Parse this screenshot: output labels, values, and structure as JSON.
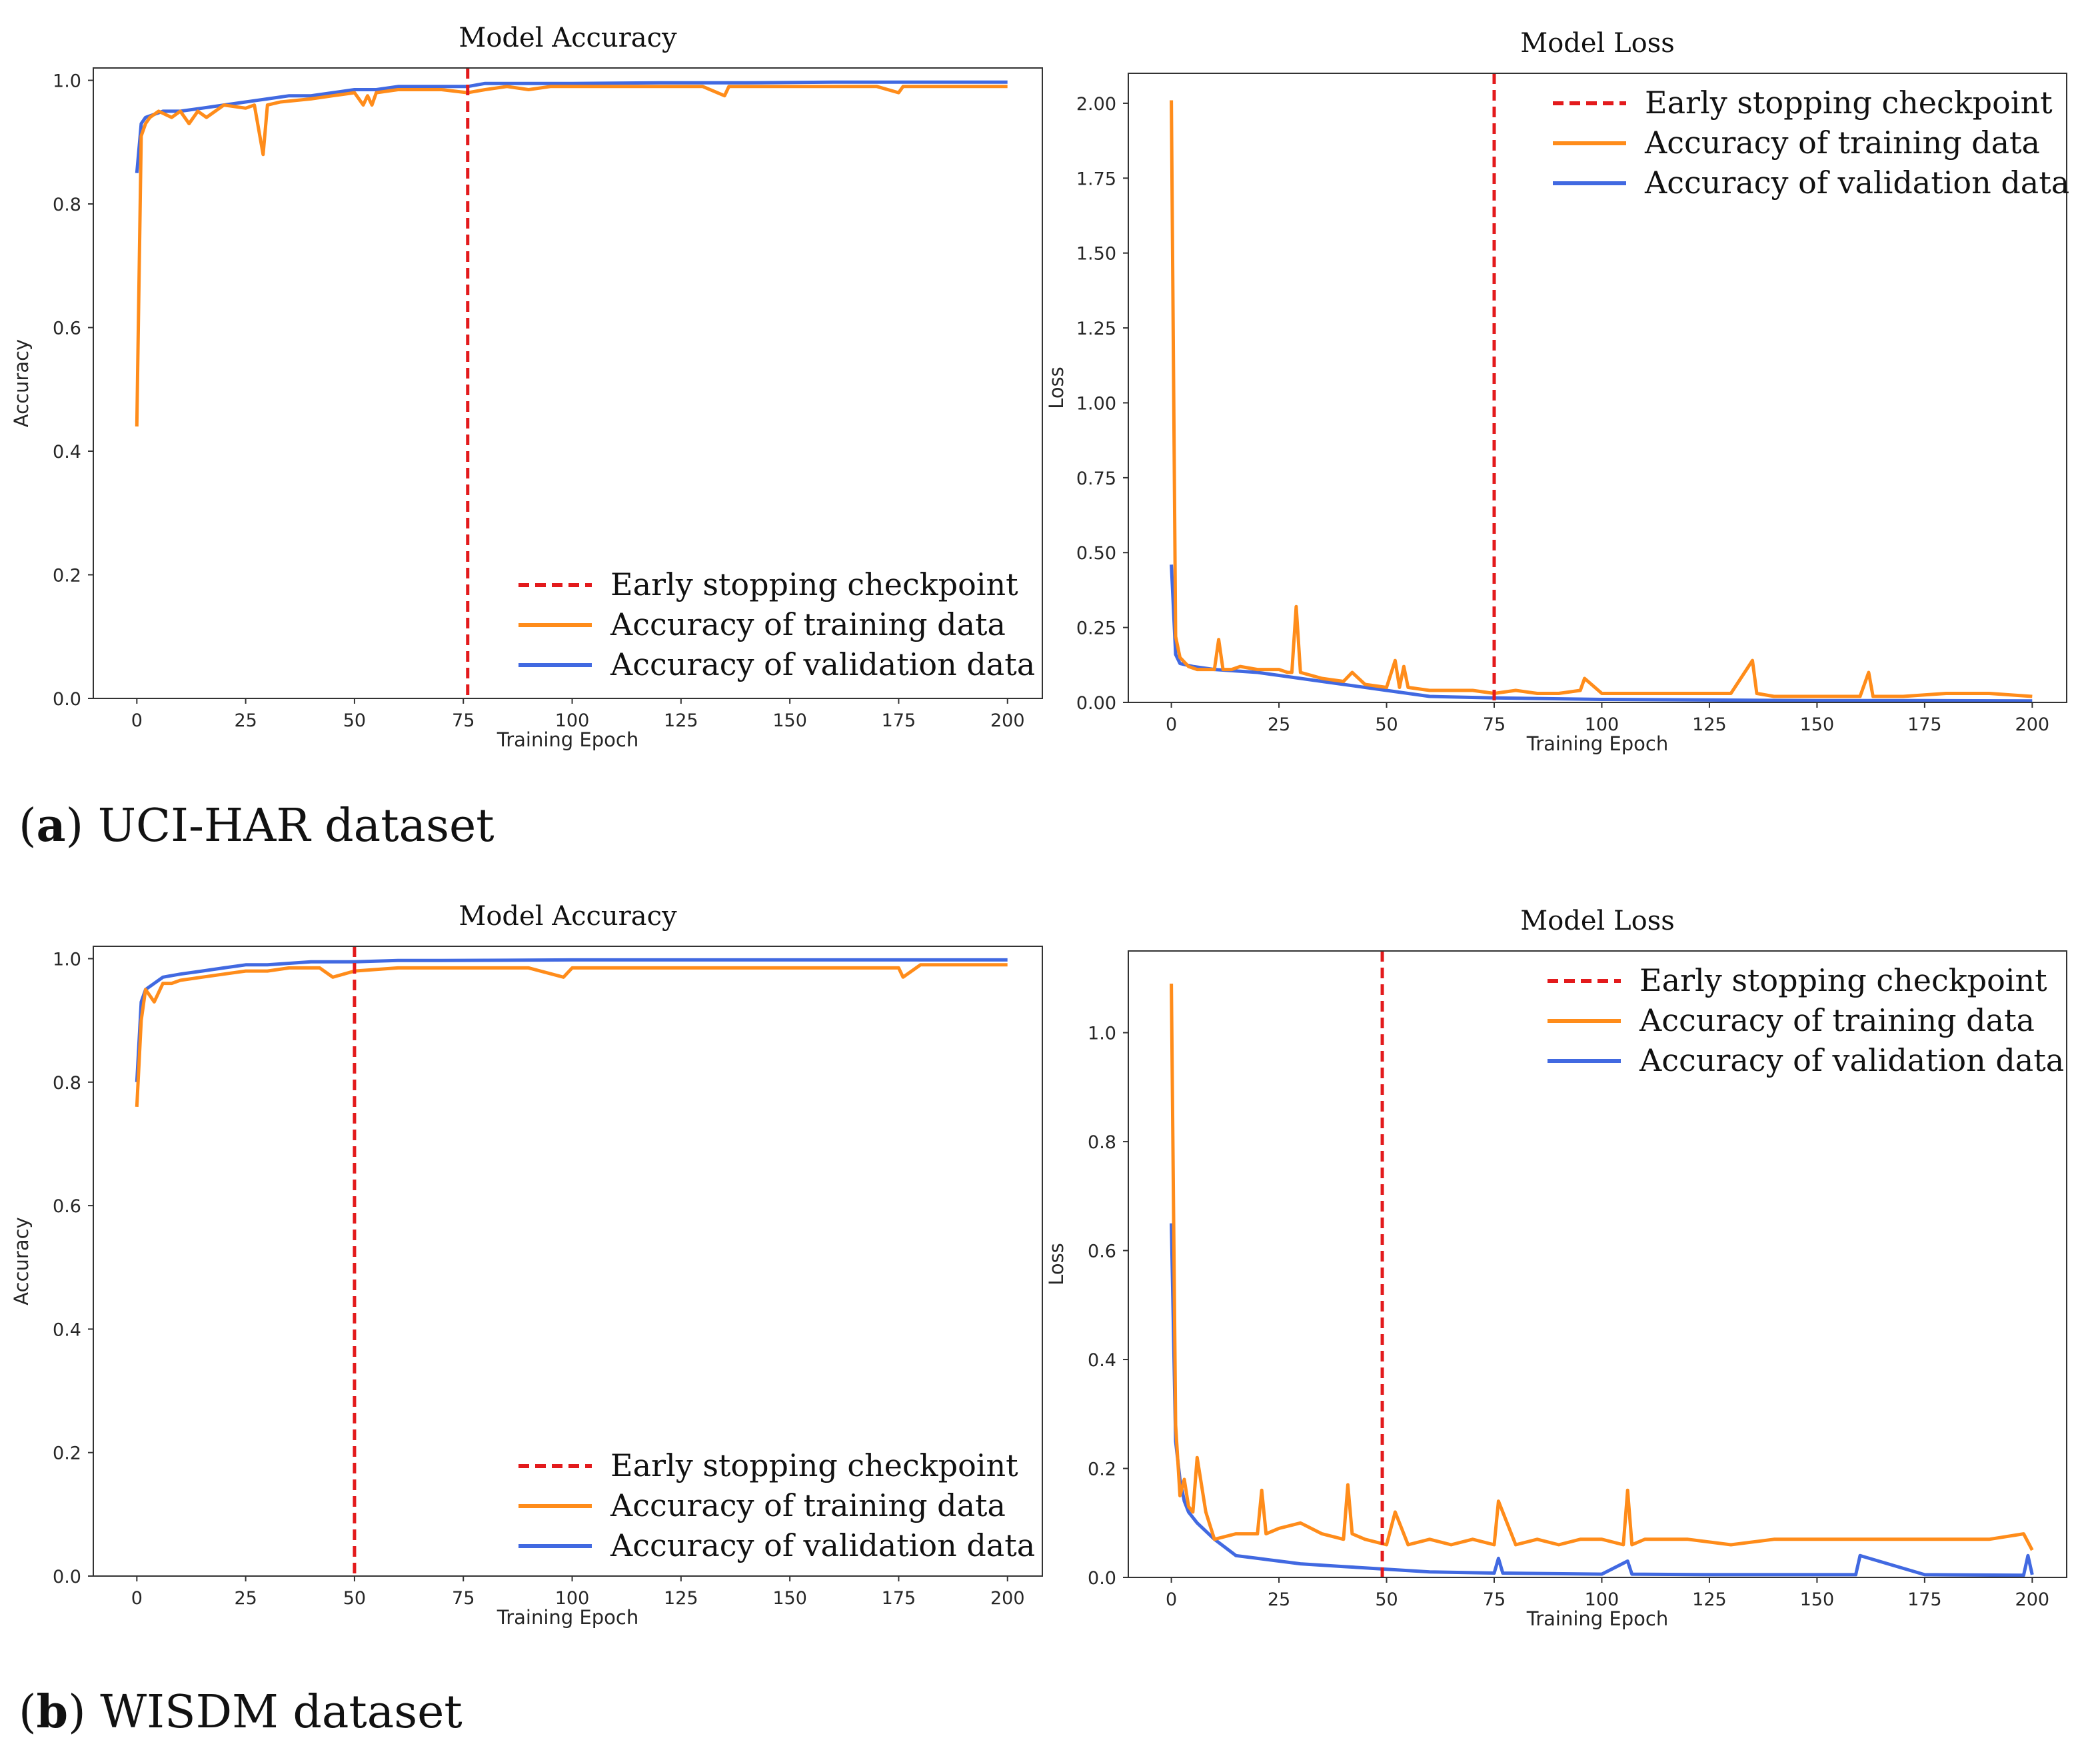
{
  "figure": {
    "captions": [
      {
        "open": "(",
        "letter": "a",
        "close": ")",
        "text": " UCI-HAR dataset"
      },
      {
        "open": "(",
        "letter": "b",
        "close": ")",
        "text": " WISDM dataset"
      }
    ]
  },
  "colors": {
    "training": "#ff8c1a",
    "validation": "#4169e1",
    "checkpoint": "#e31a1c",
    "frame": "#333333"
  },
  "chart_data": [
    {
      "type": "line",
      "title": "Model Accuracy",
      "xlabel": "Training Epoch",
      "ylabel": "Accuracy",
      "xlim": [
        -10,
        208
      ],
      "ylim": [
        0,
        1.02
      ],
      "xticks": [
        0,
        25,
        50,
        75,
        100,
        125,
        150,
        175,
        200
      ],
      "yticks": [
        0.0,
        0.2,
        0.4,
        0.6,
        0.8,
        1.0
      ],
      "ytick_labels": [
        "0.0",
        "0.2",
        "0.4",
        "0.6",
        "0.8",
        "1.0"
      ],
      "grid": false,
      "legend": "bottom-right",
      "checkpoint_x": 76,
      "legend_labels": [
        "Early stopping checkpoint",
        "Accuracy of training data",
        "Accuracy of validation data"
      ],
      "series": [
        {
          "name": "Accuracy of training data",
          "role": "training",
          "x": [
            0,
            1,
            2,
            3,
            5,
            8,
            10,
            12,
            14,
            16,
            20,
            25,
            27,
            29,
            30,
            33,
            40,
            45,
            50,
            52,
            53,
            54,
            55,
            60,
            65,
            70,
            76,
            80,
            85,
            90,
            95,
            100,
            110,
            120,
            130,
            135,
            136,
            140,
            150,
            160,
            170,
            175,
            176,
            180,
            190,
            200
          ],
          "y": [
            0.44,
            0.91,
            0.93,
            0.94,
            0.95,
            0.94,
            0.95,
            0.93,
            0.95,
            0.94,
            0.96,
            0.955,
            0.96,
            0.88,
            0.96,
            0.965,
            0.97,
            0.975,
            0.98,
            0.96,
            0.975,
            0.96,
            0.98,
            0.985,
            0.985,
            0.985,
            0.98,
            0.985,
            0.99,
            0.985,
            0.99,
            0.99,
            0.99,
            0.99,
            0.99,
            0.975,
            0.99,
            0.99,
            0.99,
            0.99,
            0.99,
            0.98,
            0.99,
            0.99,
            0.99,
            0.99
          ]
        },
        {
          "name": "Accuracy of validation data",
          "role": "validation",
          "x": [
            0,
            1,
            2,
            4,
            6,
            10,
            15,
            20,
            25,
            30,
            35,
            40,
            45,
            50,
            55,
            60,
            70,
            76,
            80,
            90,
            100,
            120,
            140,
            160,
            180,
            200
          ],
          "y": [
            0.85,
            0.93,
            0.94,
            0.945,
            0.95,
            0.95,
            0.955,
            0.96,
            0.965,
            0.97,
            0.975,
            0.975,
            0.98,
            0.985,
            0.985,
            0.99,
            0.99,
            0.99,
            0.995,
            0.995,
            0.995,
            0.996,
            0.996,
            0.997,
            0.997,
            0.997
          ]
        }
      ]
    },
    {
      "type": "line",
      "title": "Model Loss",
      "xlabel": "Training Epoch",
      "ylabel": "Loss",
      "xlim": [
        -10,
        208
      ],
      "ylim": [
        0,
        2.1
      ],
      "xticks": [
        0,
        25,
        50,
        75,
        100,
        125,
        150,
        175,
        200
      ],
      "yticks": [
        0.0,
        0.25,
        0.5,
        0.75,
        1.0,
        1.25,
        1.5,
        1.75,
        2.0
      ],
      "ytick_labels": [
        "0.00",
        "0.25",
        "0.50",
        "0.75",
        "1.00",
        "1.25",
        "1.50",
        "1.75",
        "2.00"
      ],
      "grid": false,
      "legend": "top-right",
      "checkpoint_x": 75,
      "legend_labels": [
        "Early stopping checkpoint",
        "Accuracy of training data",
        "Accuracy of validation data"
      ],
      "series": [
        {
          "name": "Accuracy of training data",
          "role": "training",
          "x": [
            0,
            1,
            2,
            4,
            6,
            8,
            10,
            11,
            12,
            14,
            16,
            20,
            25,
            27,
            28,
            29,
            30,
            35,
            40,
            42,
            45,
            50,
            52,
            53,
            54,
            55,
            60,
            65,
            70,
            75,
            80,
            85,
            90,
            95,
            96,
            100,
            110,
            120,
            130,
            135,
            136,
            140,
            150,
            160,
            162,
            163,
            170,
            180,
            190,
            200
          ],
          "y": [
            2.01,
            0.22,
            0.15,
            0.12,
            0.11,
            0.11,
            0.11,
            0.21,
            0.11,
            0.11,
            0.12,
            0.11,
            0.11,
            0.1,
            0.1,
            0.32,
            0.1,
            0.08,
            0.07,
            0.1,
            0.06,
            0.05,
            0.14,
            0.05,
            0.12,
            0.05,
            0.04,
            0.04,
            0.04,
            0.03,
            0.04,
            0.03,
            0.03,
            0.04,
            0.08,
            0.03,
            0.03,
            0.03,
            0.03,
            0.14,
            0.03,
            0.02,
            0.02,
            0.02,
            0.1,
            0.02,
            0.02,
            0.03,
            0.03,
            0.02
          ]
        },
        {
          "name": "Accuracy of validation data",
          "role": "validation",
          "x": [
            0,
            1,
            2,
            5,
            10,
            20,
            30,
            40,
            50,
            60,
            75,
            100,
            125,
            150,
            175,
            200
          ],
          "y": [
            0.46,
            0.16,
            0.13,
            0.12,
            0.11,
            0.1,
            0.08,
            0.06,
            0.04,
            0.02,
            0.015,
            0.01,
            0.008,
            0.006,
            0.006,
            0.005
          ]
        }
      ]
    },
    {
      "type": "line",
      "title": "Model Accuracy",
      "xlabel": "Training Epoch",
      "ylabel": "Accuracy",
      "xlim": [
        -10,
        208
      ],
      "ylim": [
        0,
        1.02
      ],
      "xticks": [
        0,
        25,
        50,
        75,
        100,
        125,
        150,
        175,
        200
      ],
      "yticks": [
        0.0,
        0.2,
        0.4,
        0.6,
        0.8,
        1.0
      ],
      "ytick_labels": [
        "0.0",
        "0.2",
        "0.4",
        "0.6",
        "0.8",
        "1.0"
      ],
      "grid": false,
      "legend": "bottom-right",
      "checkpoint_x": 50,
      "legend_labels": [
        "Early stopping checkpoint",
        "Accuracy of training data",
        "Accuracy of validation data"
      ],
      "series": [
        {
          "name": "Accuracy of training data",
          "role": "training",
          "x": [
            0,
            1,
            2,
            3,
            4,
            6,
            8,
            10,
            15,
            20,
            25,
            30,
            35,
            42,
            45,
            50,
            60,
            70,
            80,
            90,
            98,
            100,
            110,
            120,
            140,
            160,
            175,
            176,
            180,
            190,
            200
          ],
          "y": [
            0.76,
            0.9,
            0.95,
            0.94,
            0.93,
            0.96,
            0.96,
            0.965,
            0.97,
            0.975,
            0.98,
            0.98,
            0.985,
            0.985,
            0.97,
            0.98,
            0.985,
            0.985,
            0.985,
            0.985,
            0.97,
            0.985,
            0.985,
            0.985,
            0.985,
            0.985,
            0.985,
            0.97,
            0.99,
            0.99,
            0.99
          ]
        },
        {
          "name": "Accuracy of validation data",
          "role": "validation",
          "x": [
            0,
            1,
            2,
            4,
            6,
            10,
            15,
            20,
            25,
            30,
            40,
            50,
            60,
            70,
            100,
            130,
            160,
            190,
            200
          ],
          "y": [
            0.8,
            0.93,
            0.95,
            0.96,
            0.97,
            0.975,
            0.98,
            0.985,
            0.99,
            0.99,
            0.995,
            0.995,
            0.997,
            0.997,
            0.998,
            0.998,
            0.998,
            0.998,
            0.998
          ]
        }
      ]
    },
    {
      "type": "line",
      "title": "Model Loss",
      "xlabel": "Training Epoch",
      "ylabel": "Loss",
      "xlim": [
        -10,
        208
      ],
      "ylim": [
        0,
        1.15
      ],
      "xticks": [
        0,
        25,
        50,
        75,
        100,
        125,
        150,
        175,
        200
      ],
      "yticks": [
        0.0,
        0.2,
        0.4,
        0.6,
        0.8,
        1.0
      ],
      "ytick_labels": [
        "0.0",
        "0.2",
        "0.4",
        "0.6",
        "0.8",
        "1.0"
      ],
      "grid": false,
      "legend": "top-right",
      "checkpoint_x": 49,
      "legend_labels": [
        "Early stopping checkpoint",
        "Accuracy of training data",
        "Accuracy of validation data"
      ],
      "series": [
        {
          "name": "Accuracy of training data",
          "role": "training",
          "x": [
            0,
            1,
            2,
            3,
            4,
            5,
            6,
            8,
            10,
            15,
            20,
            21,
            22,
            25,
            30,
            35,
            40,
            41,
            42,
            45,
            50,
            52,
            55,
            60,
            65,
            70,
            75,
            76,
            80,
            85,
            90,
            95,
            100,
            105,
            106,
            107,
            110,
            120,
            130,
            140,
            150,
            160,
            170,
            180,
            190,
            198,
            200
          ],
          "y": [
            1.09,
            0.28,
            0.15,
            0.18,
            0.13,
            0.12,
            0.22,
            0.12,
            0.07,
            0.08,
            0.08,
            0.16,
            0.08,
            0.09,
            0.1,
            0.08,
            0.07,
            0.17,
            0.08,
            0.07,
            0.06,
            0.12,
            0.06,
            0.07,
            0.06,
            0.07,
            0.06,
            0.14,
            0.06,
            0.07,
            0.06,
            0.07,
            0.07,
            0.06,
            0.16,
            0.06,
            0.07,
            0.07,
            0.06,
            0.07,
            0.07,
            0.07,
            0.07,
            0.07,
            0.07,
            0.08,
            0.05
          ]
        },
        {
          "name": "Accuracy of validation data",
          "role": "validation",
          "x": [
            0,
            1,
            2,
            3,
            4,
            6,
            10,
            15,
            20,
            25,
            30,
            40,
            50,
            60,
            75,
            76,
            77,
            100,
            106,
            107,
            125,
            140,
            159,
            160,
            175,
            198,
            199,
            200
          ],
          "y": [
            0.65,
            0.25,
            0.18,
            0.14,
            0.12,
            0.1,
            0.07,
            0.04,
            0.035,
            0.03,
            0.025,
            0.02,
            0.015,
            0.01,
            0.008,
            0.035,
            0.008,
            0.006,
            0.03,
            0.006,
            0.005,
            0.005,
            0.005,
            0.04,
            0.005,
            0.004,
            0.04,
            0.005
          ]
        }
      ]
    }
  ]
}
